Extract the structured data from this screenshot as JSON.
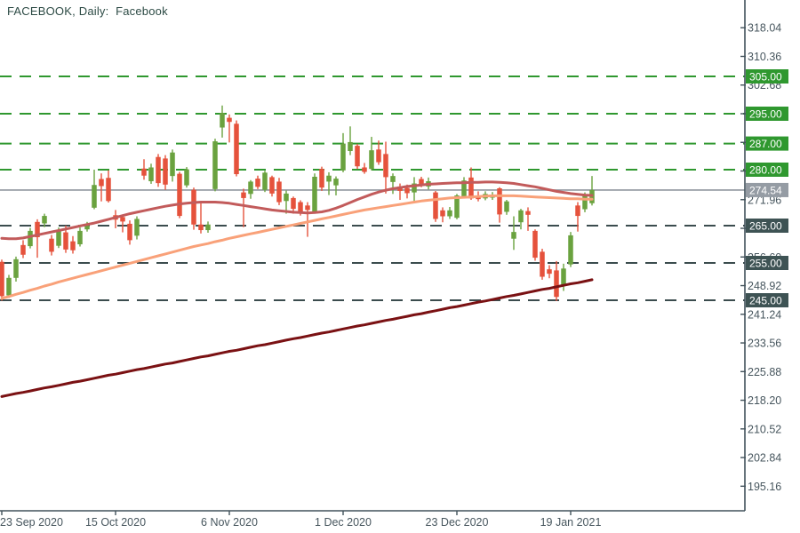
{
  "title": "FACEBOOK, Daily:  Facebook",
  "colors": {
    "background": "#ffffff",
    "candle_up": "#6aa23f",
    "candle_down": "#e5523c",
    "ma_mid": "#c25b5b",
    "ma_slow": "#f9a179",
    "ma_long": "#7a1113",
    "level_resistance": "#2f982f",
    "level_support": "#3b4c4e",
    "level_current": "#8f969e",
    "badge_resistance": "#2f982f",
    "badge_support": "#3e5354",
    "badge_current": "#959ca4",
    "axis": "#42525b",
    "tick_text": "#47565e",
    "title_text": "#2d4b45"
  },
  "chart_data": {
    "type": "candlestick",
    "symbol": "FACEBOOK",
    "timeframe": "Daily",
    "title": "FACEBOOK, Daily:  Facebook",
    "grid": "horizontal-levels-only",
    "y_axis": {
      "side": "right",
      "tick_step": 7.68,
      "tick_labels": [
        "318.04",
        "310.36",
        "302.68",
        "295.00",
        "287.32",
        "279.64",
        "271.96",
        "264.28",
        "256.60",
        "248.92",
        "241.24",
        "233.56",
        "225.88",
        "218.20",
        "210.52",
        "202.84",
        "195.16"
      ],
      "tick_prices": [
        318.04,
        310.36,
        302.68,
        295.0,
        287.32,
        279.64,
        271.96,
        264.28,
        256.6,
        248.92,
        241.24,
        233.56,
        225.88,
        218.2,
        210.52,
        202.84,
        195.16
      ]
    },
    "x_axis": {
      "tick_labels": [
        "23 Sep 2020",
        "15 Oct 2020",
        "6 Nov 2020",
        "1 Dec 2020",
        "23 Dec 2020",
        "19 Jan 2021"
      ],
      "tick_candle_index": [
        0,
        16,
        32,
        48,
        64,
        80
      ]
    },
    "levels": [
      {
        "price": 305.0,
        "type": "resistance"
      },
      {
        "price": 295.0,
        "type": "resistance"
      },
      {
        "price": 287.0,
        "type": "resistance"
      },
      {
        "price": 280.0,
        "type": "resistance"
      },
      {
        "price": 274.54,
        "type": "current"
      },
      {
        "price": 265.0,
        "type": "support"
      },
      {
        "price": 255.0,
        "type": "support"
      },
      {
        "price": 245.0,
        "type": "support"
      }
    ],
    "badges": [
      {
        "label": "305.00",
        "price": 305.0,
        "type": "resistance"
      },
      {
        "label": "295.00",
        "price": 295.0,
        "type": "resistance"
      },
      {
        "label": "287.00",
        "price": 287.0,
        "type": "resistance"
      },
      {
        "label": "280.00",
        "price": 280.0,
        "type": "resistance"
      },
      {
        "label": "274.54",
        "price": 274.54,
        "type": "current"
      },
      {
        "label": "265.00",
        "price": 265.0,
        "type": "support"
      },
      {
        "label": "255.00",
        "price": 255.0,
        "type": "support"
      },
      {
        "label": "245.00",
        "price": 245.0,
        "type": "support"
      }
    ],
    "current_price": 274.54,
    "candles_ohlc": [
      [
        255.3,
        255.9,
        244.9,
        246.1
      ],
      [
        246.3,
        251.8,
        245.6,
        251.0
      ],
      [
        251.0,
        256.7,
        250.0,
        256.0
      ],
      [
        259.8,
        261.1,
        256.3,
        257.2
      ],
      [
        259.5,
        264.4,
        258.9,
        263.6
      ],
      [
        266.0,
        266.7,
        256.4,
        261.9
      ],
      [
        265.6,
        268.2,
        264.6,
        267.6
      ],
      [
        261.5,
        262.5,
        257.0,
        258.0
      ],
      [
        259.6,
        264.5,
        259.0,
        263.7
      ],
      [
        263.2,
        265.0,
        257.7,
        258.6
      ],
      [
        260.8,
        262.2,
        257.5,
        258.4
      ],
      [
        260.0,
        264.5,
        259.4,
        263.6
      ],
      [
        264.0,
        266.0,
        263.4,
        265.0
      ],
      [
        269.8,
        280.0,
        269.4,
        275.9
      ],
      [
        277.5,
        279.0,
        271.5,
        275.6
      ],
      [
        277.8,
        279.8,
        271.2,
        271.6
      ],
      [
        267.8,
        269.2,
        264.3,
        266.6
      ],
      [
        267.3,
        268.0,
        263.2,
        266.1
      ],
      [
        265.5,
        266.4,
        259.9,
        261.1
      ],
      [
        262.3,
        267.5,
        261.3,
        266.8
      ],
      [
        280.3,
        282.8,
        277.3,
        278.4
      ],
      [
        276.9,
        281.6,
        276.2,
        280.6
      ],
      [
        283.4,
        284.2,
        275.4,
        276.4
      ],
      [
        283.0,
        283.9,
        274.6,
        276.0
      ],
      [
        278.3,
        285.4,
        276.8,
        284.6
      ],
      [
        278.9,
        279.4,
        267.0,
        267.6
      ],
      [
        275.8,
        280.7,
        275.2,
        280.1
      ],
      [
        274.6,
        275.2,
        263.9,
        265.3
      ],
      [
        265.3,
        271.5,
        262.9,
        263.8
      ],
      [
        263.8,
        266.1,
        263.1,
        265.3
      ],
      [
        274.8,
        288.3,
        274.2,
        287.6
      ],
      [
        291.3,
        297.2,
        288.6,
        295.2
      ],
      [
        293.9,
        294.8,
        287.3,
        292.8
      ],
      [
        292.3,
        293.2,
        278.2,
        278.8
      ],
      [
        273.9,
        274.9,
        264.6,
        272.4
      ],
      [
        273.5,
        277.2,
        272.2,
        276.8
      ],
      [
        277.6,
        278.4,
        274.8,
        275.4
      ],
      [
        274.6,
        279.7,
        274.0,
        279.2
      ],
      [
        278.0,
        278.4,
        272.8,
        273.6
      ],
      [
        276.8,
        277.8,
        270.5,
        271.3
      ],
      [
        271.6,
        274.4,
        268.2,
        273.6
      ],
      [
        272.4,
        272.8,
        268.2,
        269.5
      ],
      [
        271.3,
        271.8,
        267.7,
        268.6
      ],
      [
        270.4,
        271.3,
        262.0,
        269.2
      ],
      [
        268.8,
        279.0,
        268.2,
        278.1
      ],
      [
        280.2,
        280.8,
        274.3,
        275.2
      ],
      [
        276.8,
        279.3,
        273.2,
        278.4
      ],
      [
        275.8,
        278.2,
        273.1,
        277.6
      ],
      [
        279.8,
        289.8,
        279.3,
        287.0
      ],
      [
        285.0,
        291.6,
        283.9,
        287.4
      ],
      [
        286.4,
        286.9,
        280.2,
        280.9
      ],
      [
        280.6,
        281.8,
        278.9,
        279.4
      ],
      [
        280.2,
        288.8,
        279.8,
        285.2
      ],
      [
        285.4,
        287.8,
        281.3,
        282.0
      ],
      [
        284.2,
        287.5,
        273.6,
        278.0
      ],
      [
        276.7,
        279.0,
        273.5,
        278.3
      ],
      [
        275.5,
        276.3,
        271.9,
        274.3
      ],
      [
        275.1,
        276.0,
        272.3,
        273.7
      ],
      [
        273.9,
        278.0,
        271.0,
        276.3
      ],
      [
        277.5,
        278.1,
        275.3,
        275.9
      ],
      [
        275.5,
        277.9,
        274.7,
        276.9
      ],
      [
        273.9,
        274.3,
        266.0,
        266.8
      ],
      [
        269.1,
        269.9,
        265.9,
        267.5
      ],
      [
        267.5,
        270.0,
        266.8,
        269.1
      ],
      [
        267.1,
        273.5,
        266.7,
        273.1
      ],
      [
        272.7,
        278.0,
        272.3,
        277.1
      ],
      [
        277.9,
        280.6,
        271.9,
        272.3
      ],
      [
        273.1,
        274.2,
        271.5,
        272.1
      ],
      [
        272.3,
        274.2,
        271.8,
        273.5
      ],
      [
        272.5,
        274.0,
        271.9,
        273.3
      ],
      [
        275.0,
        275.3,
        265.8,
        268.0
      ],
      [
        268.7,
        271.9,
        267.9,
        271.5
      ],
      [
        261.5,
        267.5,
        258.5,
        263.3
      ],
      [
        265.9,
        269.5,
        264.0,
        269.1
      ],
      [
        268.9,
        269.9,
        263.6,
        267.9
      ],
      [
        263.6,
        264.0,
        255.6,
        256.4
      ],
      [
        258.0,
        258.8,
        250.5,
        251.3
      ],
      [
        253.3,
        254.4,
        250.9,
        252.1
      ],
      [
        253.0,
        255.5,
        244.8,
        245.9
      ],
      [
        249.0,
        254.8,
        247.5,
        253.5
      ],
      [
        254.6,
        263.3,
        253.9,
        262.4
      ],
      [
        270.4,
        271.3,
        263.4,
        267.6
      ],
      [
        269.4,
        273.9,
        268.6,
        273.0
      ],
      [
        271.0,
        278.3,
        270.4,
        274.54
      ]
    ],
    "moving_averages": [
      {
        "name": "ma-mid",
        "color_key": "ma_mid",
        "values": [
          261.6,
          261.5,
          261.5,
          261.7,
          262.1,
          262.5,
          262.9,
          263.3,
          263.7,
          264.1,
          264.5,
          264.9,
          265.3,
          265.7,
          266.2,
          266.7,
          267.2,
          267.7,
          268.2,
          268.6,
          269.0,
          269.4,
          269.8,
          270.2,
          270.5,
          270.8,
          271.0,
          271.2,
          271.3,
          271.3,
          271.3,
          271.2,
          271.0,
          270.7,
          270.4,
          270.1,
          269.8,
          269.5,
          269.2,
          269.0,
          268.8,
          268.6,
          268.5,
          268.4,
          268.5,
          268.7,
          269.1,
          269.7,
          270.4,
          271.2,
          272.0,
          272.7,
          273.4,
          274.0,
          274.5,
          274.9,
          275.2,
          275.5,
          275.7,
          275.9,
          276.1,
          276.2,
          276.3,
          276.4,
          276.5,
          276.5,
          276.6,
          276.6,
          276.7,
          276.7,
          276.6,
          276.5,
          276.3,
          276.0,
          275.7,
          275.4,
          275.0,
          274.6,
          274.2,
          273.9,
          273.6,
          273.4,
          273.2,
          273.1
        ]
      },
      {
        "name": "ma-slow",
        "color_key": "ma_slow",
        "values": [
          245.5,
          246.0,
          246.6,
          247.1,
          247.7,
          248.2,
          248.8,
          249.3,
          249.9,
          250.4,
          250.9,
          251.4,
          251.9,
          252.4,
          252.9,
          253.4,
          253.9,
          254.4,
          254.9,
          255.4,
          255.9,
          256.4,
          256.9,
          257.4,
          257.9,
          258.4,
          258.9,
          259.4,
          259.8,
          260.2,
          260.7,
          261.1,
          261.6,
          262.0,
          262.4,
          262.8,
          263.2,
          263.6,
          264.0,
          264.4,
          264.8,
          265.2,
          265.6,
          266.0,
          266.4,
          266.8,
          267.2,
          267.6,
          268.0,
          268.4,
          268.8,
          269.2,
          269.5,
          269.8,
          270.1,
          270.4,
          270.7,
          271.0,
          271.3,
          271.6,
          271.8,
          272.0,
          272.2,
          272.4,
          272.5,
          272.6,
          272.7,
          272.8,
          272.9,
          273.0,
          273.0,
          273.0,
          273.0,
          272.9,
          272.8,
          272.7,
          272.6,
          272.5,
          272.4,
          272.3,
          272.2,
          272.2,
          272.1,
          272.1
        ]
      },
      {
        "name": "ma-long",
        "color_key": "ma_long",
        "values": [
          219.2,
          219.6,
          220.0,
          220.3,
          220.7,
          221.1,
          221.5,
          221.8,
          222.2,
          222.6,
          223.0,
          223.3,
          223.7,
          224.1,
          224.5,
          224.9,
          225.2,
          225.6,
          226.0,
          226.4,
          226.7,
          227.1,
          227.5,
          227.9,
          228.2,
          228.6,
          229.0,
          229.4,
          229.8,
          230.1,
          230.5,
          230.9,
          231.3,
          231.6,
          232.0,
          232.4,
          232.8,
          233.1,
          233.5,
          233.9,
          234.3,
          234.7,
          235.0,
          235.4,
          235.8,
          236.2,
          236.5,
          236.9,
          237.3,
          237.7,
          238.1,
          238.4,
          238.8,
          239.2,
          239.6,
          239.9,
          240.3,
          240.7,
          241.1,
          241.4,
          241.8,
          242.2,
          242.6,
          243.0,
          243.3,
          243.7,
          244.1,
          244.5,
          244.8,
          245.2,
          245.6,
          246.0,
          246.3,
          246.7,
          247.1,
          247.5,
          247.9,
          248.2,
          248.6,
          249.0,
          249.4,
          249.7,
          250.1,
          250.5
        ]
      }
    ]
  }
}
